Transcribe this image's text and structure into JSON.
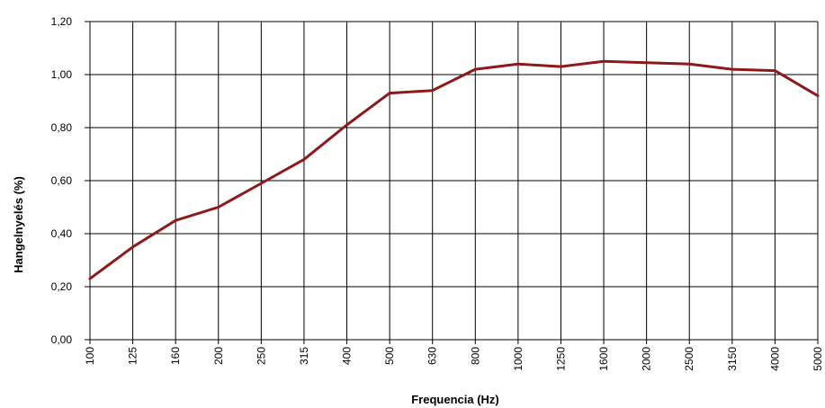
{
  "chart_data": {
    "type": "line",
    "title": "",
    "xlabel": "Frequencia (Hz)",
    "ylabel": "Hangelnyelés (%)",
    "categories": [
      "100",
      "125",
      "160",
      "200",
      "250",
      "315",
      "400",
      "500",
      "630",
      "800",
      "1000",
      "1250",
      "1600",
      "2000",
      "2500",
      "3150",
      "4000",
      "5000"
    ],
    "series": [
      {
        "values": [
          0.23,
          0.35,
          0.45,
          0.5,
          0.59,
          0.68,
          0.81,
          0.93,
          0.94,
          1.02,
          1.04,
          1.03,
          1.05,
          1.045,
          1.04,
          1.02,
          1.015,
          0.92
        ]
      }
    ],
    "ylim": [
      0,
      1.2
    ],
    "yticks": [
      "0,00",
      "0,20",
      "0,40",
      "0,60",
      "0,80",
      "1,00",
      "1,20"
    ],
    "grid": true,
    "legend": "none",
    "line_color": "#8b1a1a",
    "grid_color": "#000000"
  }
}
